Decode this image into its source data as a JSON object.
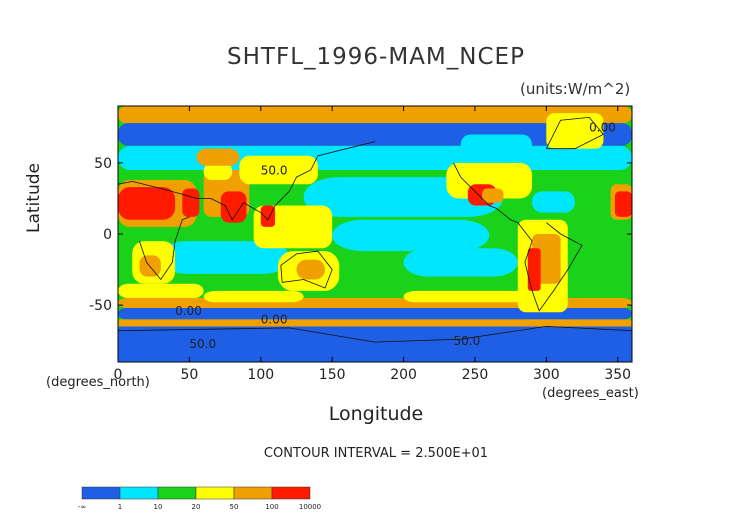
{
  "chart_data": {
    "type": "heatmap",
    "title": "SHTFL_1996-MAM_NCEP",
    "units": "(units:W/m^2)",
    "xlabel": "Longitude",
    "ylabel": "Latitude",
    "x_unit_label": "(degrees_east)",
    "y_unit_label": "(degrees_north)",
    "xlim": [
      0,
      360
    ],
    "ylim": [
      -90,
      90
    ],
    "x_ticks": [
      "0",
      "50",
      "100",
      "150",
      "200",
      "250",
      "300",
      "350"
    ],
    "y_ticks": [
      "50",
      "0",
      "-50"
    ],
    "contour_interval_text": "CONTOUR INTERVAL = 2.500E+01",
    "contour_labels": [
      "0.00",
      "50.0",
      "0.00",
      "0.00",
      "50.0",
      "50.0"
    ],
    "colorbar": {
      "boundaries": [
        "-∞",
        "1",
        "10",
        "20",
        "50",
        "100",
        "10000"
      ],
      "colors": [
        "#1f5fe6",
        "#00e6ff",
        "#19d219",
        "#ffff00",
        "#f0a000",
        "#ff1a00"
      ]
    }
  }
}
